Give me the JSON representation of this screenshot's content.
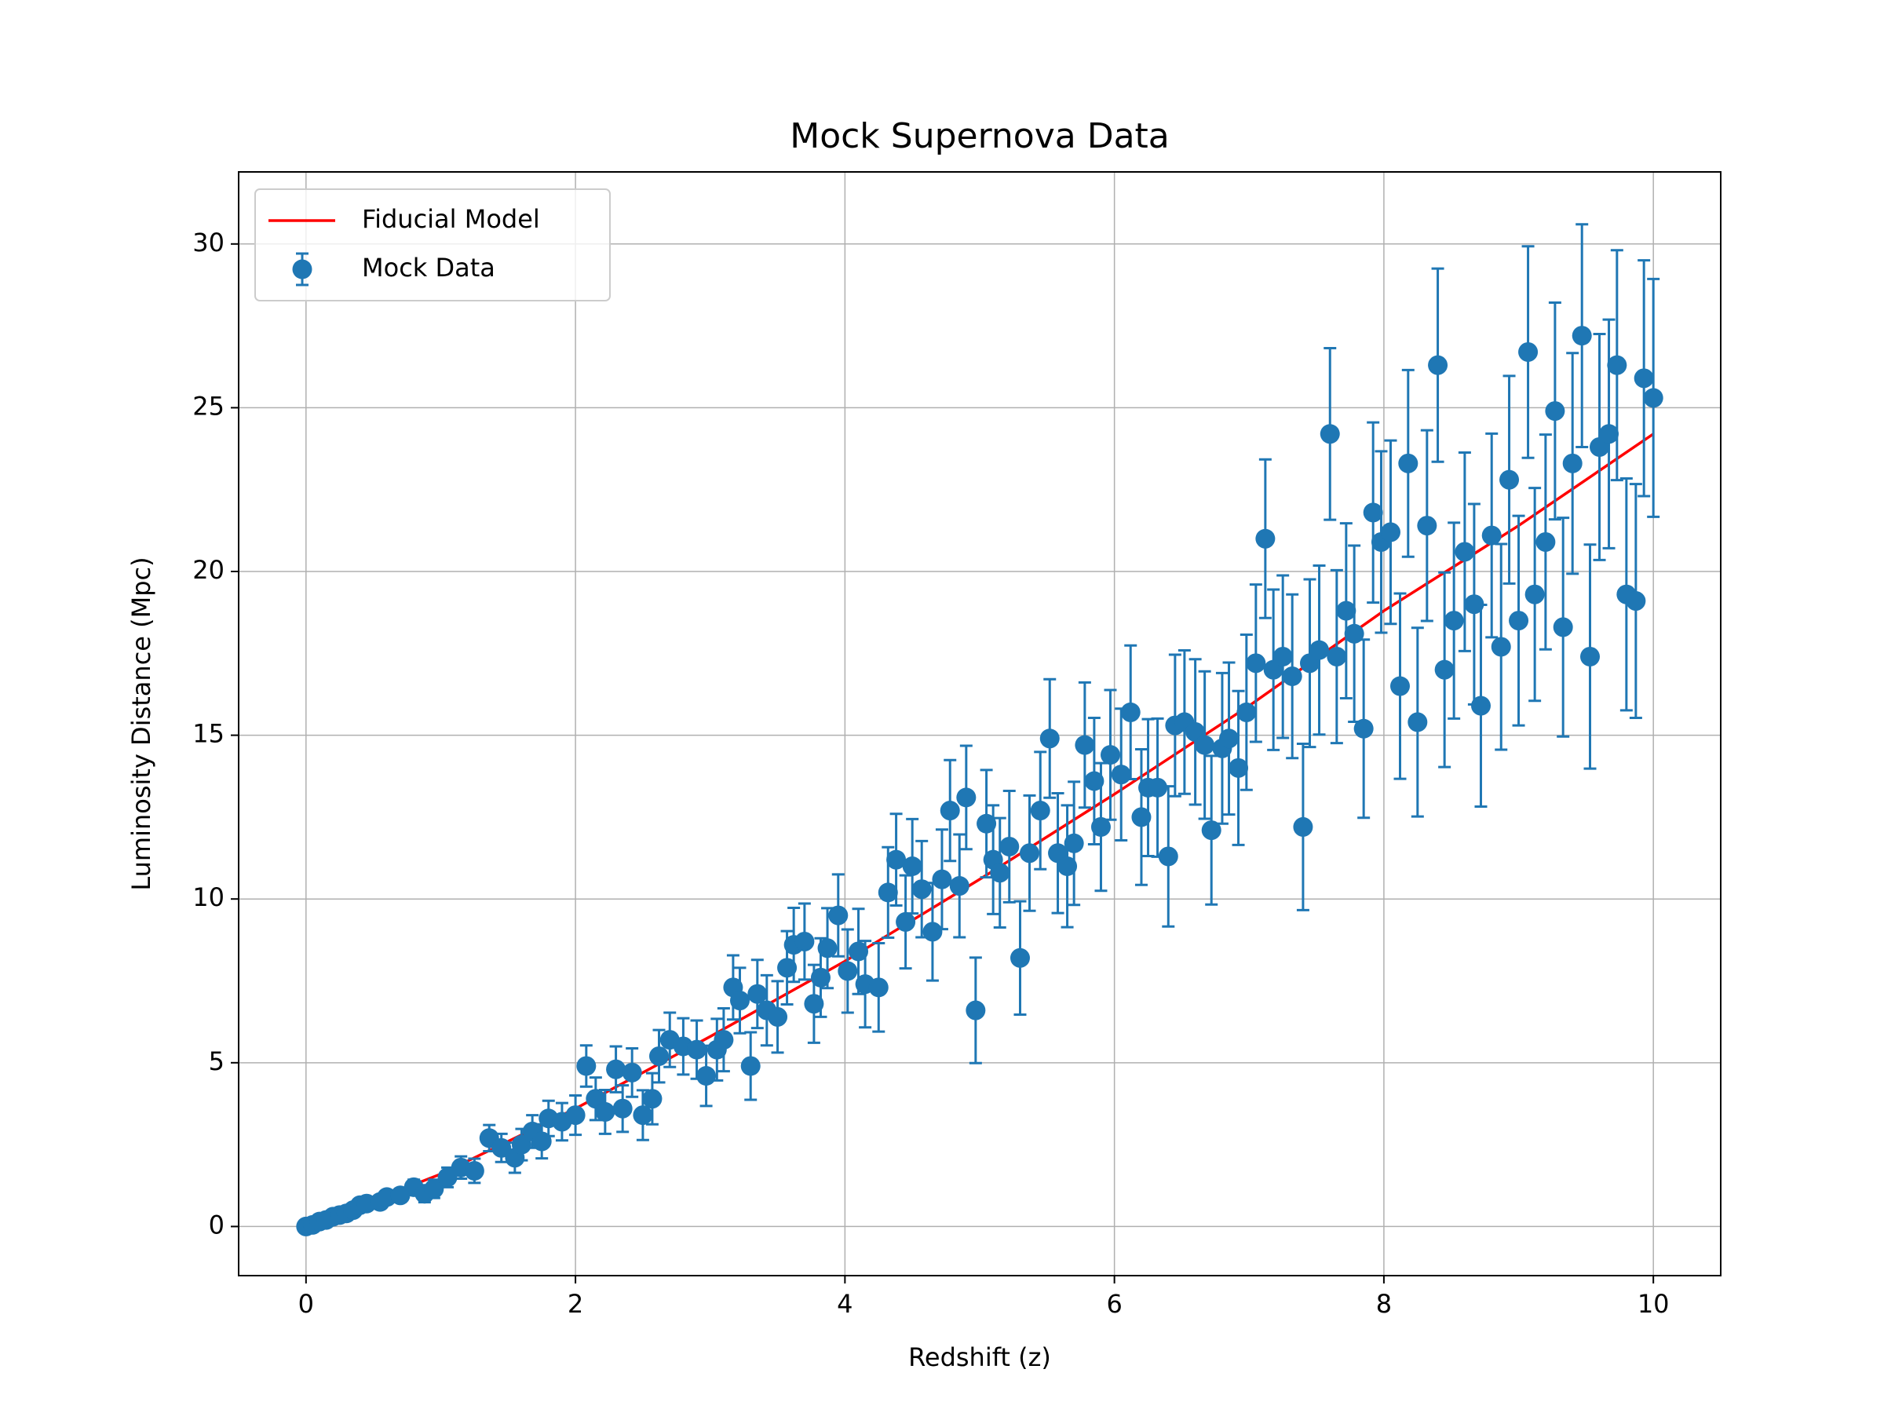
{
  "chart_data": {
    "type": "errorbar",
    "title": "Mock Supernova Data",
    "x_label": "Redshift (z)",
    "y_label": "Luminosity Distance (Mpc)",
    "xlim": [
      -0.5,
      10.5
    ],
    "ylim": [
      -1.5,
      32.2
    ],
    "xticks": [
      0,
      2,
      4,
      6,
      8,
      10
    ],
    "yticks": [
      0,
      5,
      10,
      15,
      20,
      25,
      30
    ],
    "grid": true,
    "legend": "upper left",
    "series": [
      {
        "name": "Fiducial Model",
        "style": "line",
        "color": "#ff0000",
        "x": [
          0,
          1,
          2,
          3,
          4,
          5,
          6,
          7,
          8,
          9,
          10
        ],
        "values": [
          0,
          1.6,
          3.6,
          5.8,
          8.1,
          10.6,
          13.2,
          15.9,
          18.8,
          21.4,
          24.2
        ]
      },
      {
        "name": "Mock Data",
        "style": "errorbar",
        "color": "#1f77b4",
        "x": [
          0,
          0.05,
          0.1,
          0.15,
          0.2,
          0.25,
          0.3,
          0.35,
          0.4,
          0.45,
          0.55,
          0.6,
          0.7,
          0.8,
          0.88,
          0.95,
          1.05,
          1.15,
          1.25,
          1.36,
          1.45,
          1.55,
          1.6,
          1.68,
          1.75,
          1.8,
          1.9,
          2.0,
          2.08,
          2.15,
          2.22,
          2.3,
          2.35,
          2.42,
          2.5,
          2.57,
          2.62,
          2.7,
          2.8,
          2.9,
          2.97,
          3.05,
          3.1,
          3.17,
          3.22,
          3.3,
          3.35,
          3.42,
          3.5,
          3.57,
          3.62,
          3.7,
          3.77,
          3.82,
          3.87,
          3.95,
          4.02,
          4.1,
          4.15,
          4.25,
          4.32,
          4.38,
          4.45,
          4.5,
          4.57,
          4.65,
          4.72,
          4.78,
          4.85,
          4.9,
          4.97,
          5.05,
          5.1,
          5.15,
          5.22,
          5.3,
          5.37,
          5.45,
          5.52,
          5.58,
          5.65,
          5.7,
          5.78,
          5.85,
          5.9,
          5.97,
          6.05,
          6.12,
          6.2,
          6.25,
          6.32,
          6.4,
          6.45,
          6.52,
          6.6,
          6.67,
          6.72,
          6.8,
          6.85,
          6.92,
          6.98,
          7.05,
          7.12,
          7.18,
          7.25,
          7.32,
          7.4,
          7.45,
          7.52,
          7.6,
          7.65,
          7.72,
          7.78,
          7.85,
          7.92,
          7.98,
          8.05,
          8.12,
          8.18,
          8.25,
          8.32,
          8.4,
          8.45,
          8.52,
          8.6,
          8.67,
          8.72,
          8.8,
          8.87,
          8.93,
          9.0,
          9.07,
          9.12,
          9.2,
          9.27,
          9.33,
          9.4,
          9.47,
          9.53,
          9.6,
          9.67,
          9.73,
          9.8,
          9.87,
          9.93,
          10.0
        ],
        "values": [
          0,
          0.05,
          0.15,
          0.2,
          0.3,
          0.35,
          0.4,
          0.5,
          0.65,
          0.7,
          0.75,
          0.9,
          0.95,
          1.2,
          1.0,
          1.15,
          1.5,
          1.8,
          1.7,
          2.7,
          2.4,
          2.1,
          2.5,
          2.9,
          2.6,
          3.3,
          3.2,
          3.4,
          4.9,
          3.9,
          3.5,
          4.8,
          3.6,
          4.7,
          3.4,
          3.9,
          5.2,
          5.7,
          5.5,
          5.4,
          4.6,
          5.4,
          5.7,
          7.3,
          6.9,
          4.9,
          7.1,
          6.6,
          6.4,
          7.9,
          8.6,
          8.7,
          6.8,
          7.6,
          8.5,
          9.5,
          7.8,
          8.4,
          7.4,
          7.3,
          10.2,
          11.2,
          9.3,
          11.0,
          10.3,
          9.0,
          10.6,
          12.7,
          10.4,
          13.1,
          6.6,
          12.3,
          11.2,
          10.8,
          11.6,
          8.2,
          11.4,
          12.7,
          14.9,
          11.4,
          11.0,
          11.7,
          14.7,
          13.6,
          12.2,
          14.4,
          13.8,
          15.7,
          12.5,
          13.4,
          13.4,
          11.3,
          15.3,
          15.4,
          15.1,
          14.7,
          12.1,
          14.6,
          14.9,
          14.0,
          15.7,
          17.2,
          21.0,
          17.0,
          17.4,
          16.8,
          12.2,
          17.2,
          17.6,
          24.2,
          17.4,
          18.8,
          18.1,
          15.2,
          21.8,
          20.9,
          21.2,
          16.5,
          23.3,
          15.4,
          21.4,
          26.3,
          17.0,
          18.5,
          20.6,
          19.0,
          15.9,
          21.1,
          17.7,
          22.8,
          18.5,
          26.7,
          19.3,
          20.9,
          24.9,
          18.3,
          23.3,
          27.2,
          17.4,
          23.8,
          24.2,
          26.3,
          19.3,
          19.1,
          25.9,
          25.3
        ],
        "errors": [
          0,
          0.01,
          0.03,
          0.04,
          0.06,
          0.07,
          0.09,
          0.1,
          0.12,
          0.13,
          0.16,
          0.17,
          0.2,
          0.23,
          0.26,
          0.28,
          0.3,
          0.34,
          0.37,
          0.4,
          0.43,
          0.46,
          0.48,
          0.5,
          0.52,
          0.54,
          0.57,
          0.6,
          0.63,
          0.65,
          0.67,
          0.7,
          0.71,
          0.74,
          0.76,
          0.78,
          0.8,
          0.83,
          0.86,
          0.89,
          0.92,
          0.94,
          0.96,
          0.98,
          1.0,
          1.03,
          1.04,
          1.07,
          1.09,
          1.12,
          1.13,
          1.16,
          1.19,
          1.2,
          1.22,
          1.25,
          1.27,
          1.3,
          1.32,
          1.35,
          1.38,
          1.4,
          1.42,
          1.44,
          1.47,
          1.49,
          1.52,
          1.54,
          1.57,
          1.58,
          1.61,
          1.64,
          1.66,
          1.67,
          1.7,
          1.73,
          1.76,
          1.79,
          1.81,
          1.83,
          1.86,
          1.88,
          1.91,
          1.93,
          1.95,
          1.98,
          2.01,
          2.04,
          2.07,
          2.09,
          2.11,
          2.14,
          2.16,
          2.19,
          2.22,
          2.25,
          2.27,
          2.3,
          2.32,
          2.35,
          2.37,
          2.4,
          2.42,
          2.45,
          2.48,
          2.5,
          2.54,
          2.56,
          2.58,
          2.62,
          2.64,
          2.67,
          2.69,
          2.72,
          2.75,
          2.77,
          2.8,
          2.83,
          2.85,
          2.88,
          2.91,
          2.95,
          2.97,
          2.99,
          3.03,
          3.06,
          3.08,
          3.11,
          3.14,
          3.17,
          3.2,
          3.23,
          3.25,
          3.28,
          3.31,
          3.34,
          3.37,
          3.4,
          3.42,
          3.45,
          3.49,
          3.51,
          3.54,
          3.57,
          3.6,
          3.63
        ]
      }
    ]
  }
}
